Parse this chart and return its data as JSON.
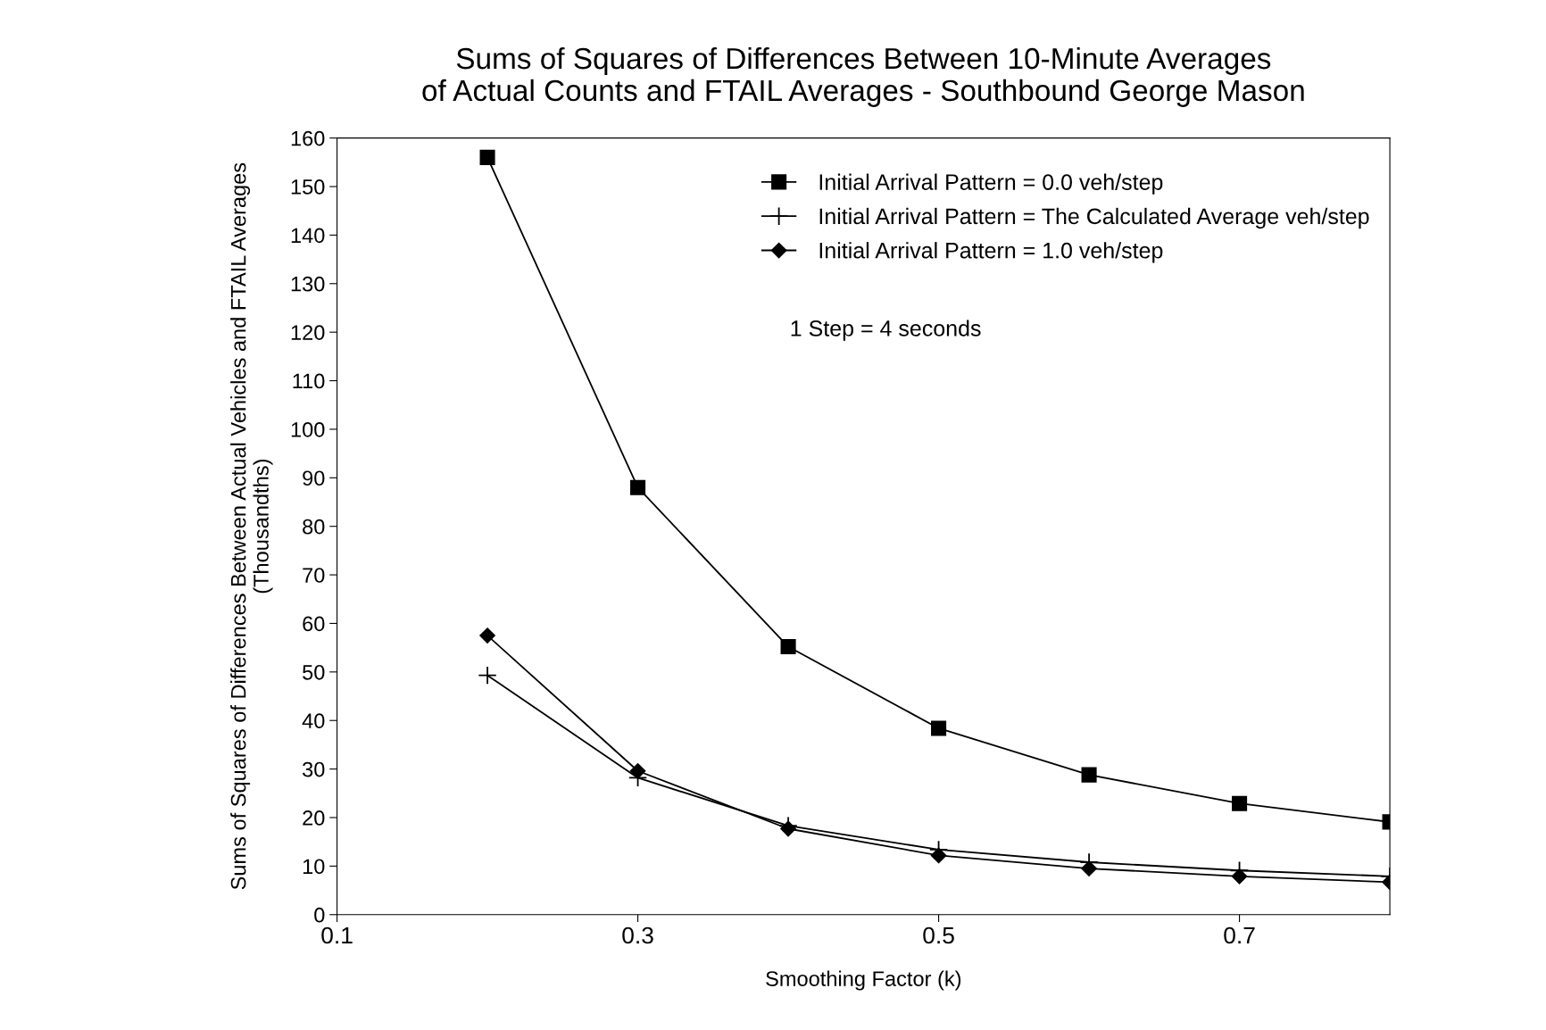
{
  "chart_data": {
    "type": "line",
    "title": "Sums of Squares of Differences Between 10-Minute Averages\nof Actual Counts and FTAIL Averages - Southbound George Mason",
    "xlabel": "Smoothing Factor (k)",
    "ylabel": "Sums of Squares of Differences Between Actual Vehicles and FTAIL Averages\n(Thousandths)",
    "x": [
      0.2,
      0.3,
      0.4,
      0.5,
      0.6,
      0.7,
      0.8
    ],
    "series": [
      {
        "name": "Initial Arrival Pattern = 0.0 veh/step",
        "color": "#000000",
        "marker": "square",
        "values": [
          156,
          88,
          55.2,
          38.4,
          28.8,
          22.9,
          19.1
        ]
      },
      {
        "name": "Initial Arrival Pattern = The Calculated Average veh/step",
        "color": "#000000",
        "marker": "cross",
        "values": [
          49.3,
          28.2,
          18.3,
          13.4,
          10.8,
          9.1,
          7.9
        ]
      },
      {
        "name": "Initial Arrival Pattern = 1.0 veh/step",
        "color": "#000000",
        "marker": "diamond",
        "values": [
          57.5,
          29.6,
          17.7,
          12.2,
          9.5,
          7.9,
          6.7
        ]
      }
    ],
    "annotations": [
      "1 Step = 4 seconds"
    ],
    "xlim": [
      0.1,
      0.8
    ],
    "xticks": [
      0.1,
      0.3,
      0.5,
      0.7
    ],
    "ylim": [
      0,
      160
    ],
    "yticks": [
      0,
      10,
      20,
      30,
      40,
      50,
      60,
      70,
      80,
      90,
      100,
      110,
      120,
      130,
      140,
      150,
      160
    ],
    "grid": false,
    "legend": "top right",
    "line_style": "solid"
  }
}
